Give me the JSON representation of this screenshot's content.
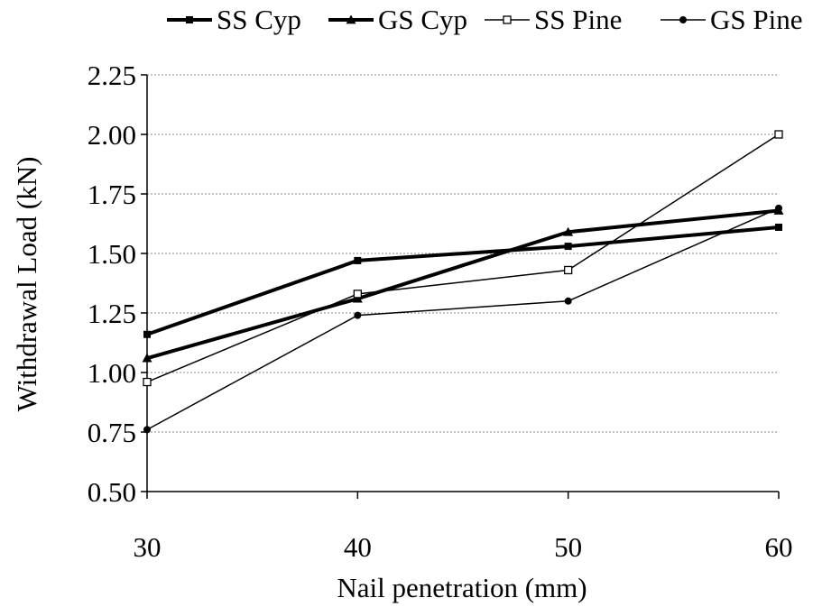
{
  "chart_data": {
    "type": "line",
    "title": "",
    "xlabel": "Nail penetration (mm)",
    "ylabel": "Withdrawal Load (kN)",
    "x": [
      30,
      40,
      50,
      60
    ],
    "x_tick_labels": [
      "30",
      "40",
      "50",
      "60"
    ],
    "xlim": [
      30,
      60
    ],
    "ylim": [
      0.5,
      2.25
    ],
    "y_tick_labels": [
      "0.50",
      "0.75",
      "1.00",
      "1.25",
      "1.50",
      "1.75",
      "2.00",
      "2.25"
    ],
    "grid": "horizontal dotted",
    "legend_position": "top",
    "series": [
      {
        "name": "SS Cyp",
        "values": [
          1.16,
          1.47,
          1.53,
          1.61
        ],
        "marker": "filled-square",
        "line": "thick",
        "color": "#000000"
      },
      {
        "name": "GS Cyp",
        "values": [
          1.06,
          1.31,
          1.59,
          1.68
        ],
        "marker": "filled-triangle",
        "line": "thick",
        "color": "#000000"
      },
      {
        "name": "SS Pine",
        "values": [
          0.96,
          1.33,
          1.43,
          2.0
        ],
        "marker": "open-square",
        "line": "thin",
        "color": "#000000"
      },
      {
        "name": "GS Pine",
        "values": [
          0.76,
          1.24,
          1.3,
          1.69
        ],
        "marker": "filled-circle",
        "line": "thin",
        "color": "#000000"
      }
    ]
  }
}
